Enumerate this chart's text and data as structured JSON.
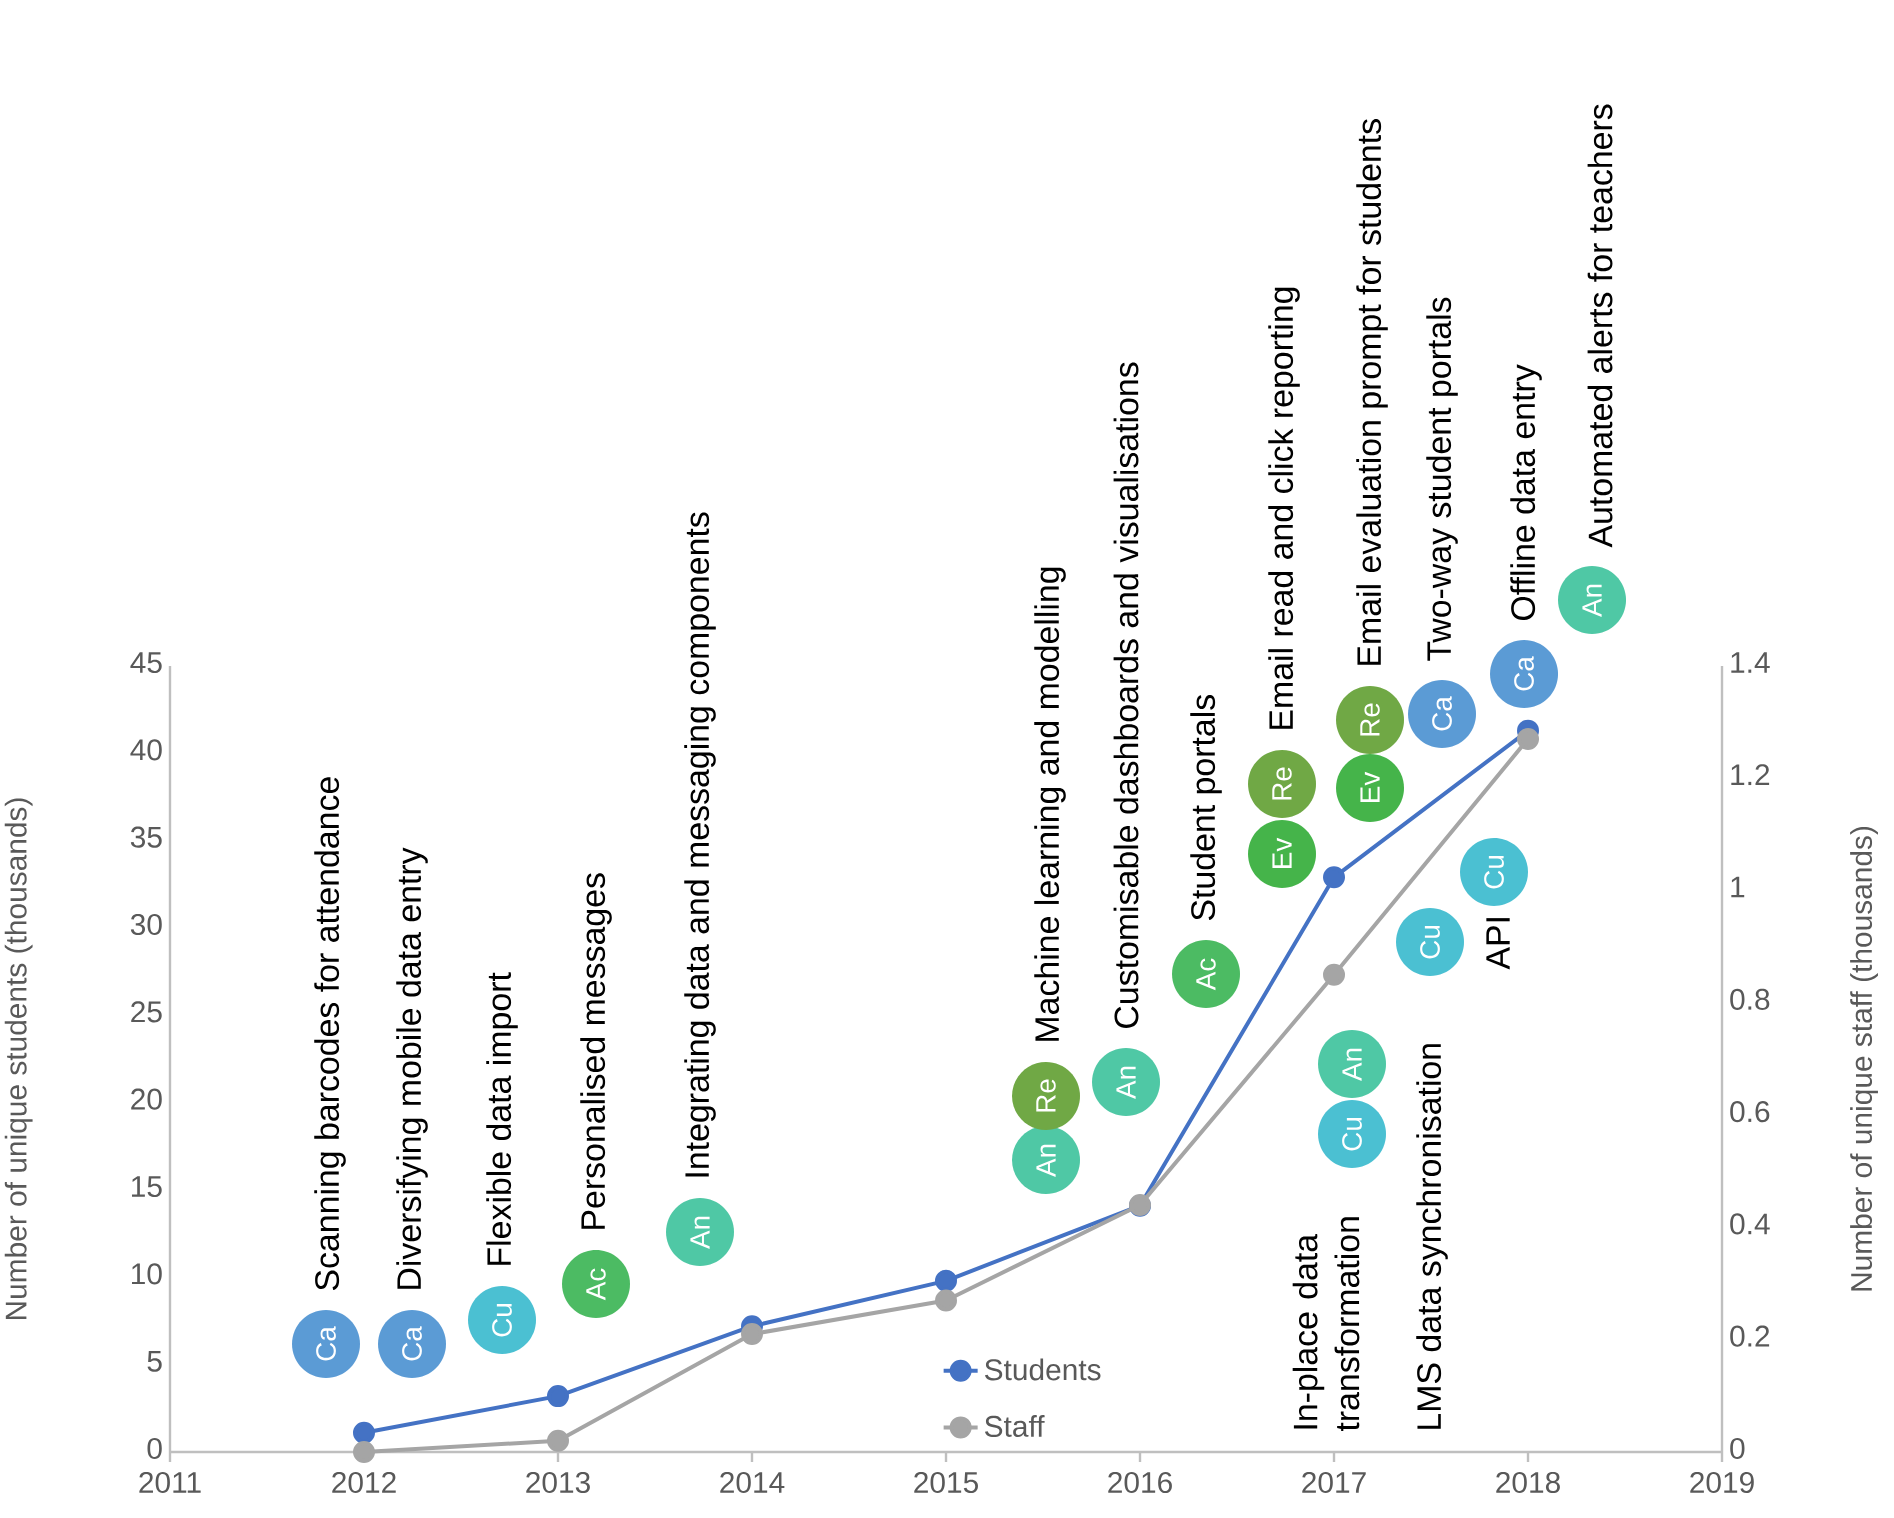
{
  "chart_data": {
    "type": "line",
    "ylabel": "Number of unique students (thousands)",
    "y2label": "Number of unique staff (thousands)",
    "x": [
      2012,
      2013,
      2014,
      2015,
      2016,
      2017,
      2018
    ],
    "xlim": [
      2011,
      2019
    ],
    "xticks": [
      2011,
      2012,
      2013,
      2014,
      2015,
      2016,
      2017,
      2018,
      2019
    ],
    "ylim": [
      0,
      45
    ],
    "yticks": [
      0,
      5,
      10,
      15,
      20,
      25,
      30,
      35,
      40,
      45
    ],
    "y2lim": [
      0,
      1.4
    ],
    "y2ticks": [
      {
        "value": 0,
        "label": "0"
      },
      {
        "value": 0.2,
        "label": "0.2"
      },
      {
        "value": 0.4,
        "label": "0.4"
      },
      {
        "value": 0.6,
        "label": "0.6"
      },
      {
        "value": 0.8,
        "label": "0.8"
      },
      {
        "value": 1,
        "label": "1"
      },
      {
        "value": 1.2,
        "label": "1.2"
      },
      {
        "value": 1.4,
        "label": "1.4"
      }
    ],
    "marker": "circle",
    "legend": "bottom",
    "series": [
      {
        "name": "Students",
        "color": "#4472c4",
        "values": [
          1.1,
          3.2,
          7.2,
          9.8,
          14.1,
          32.9,
          41.3
        ]
      },
      {
        "name": "Staff",
        "color": "#a5a5a5",
        "axis": "y2",
        "values": [
          0,
          0.02,
          0.21,
          0.27,
          0.44,
          0.85,
          1.27
        ]
      }
    ],
    "annotations": [
      "Ca",
      "Scanning barcodes for attendance",
      "Ca",
      "Diversifying mobile data entry",
      "Cu",
      "Flexible data import",
      "Ac",
      "Personalised messages",
      "An",
      "Integrating data and messaging components",
      "An",
      "Re",
      "Machine learning and modelling",
      "An",
      "Customisable dashboards and visualisations",
      "Ac",
      "Student portals",
      "Ev",
      "Re",
      "Email read and click reporting",
      "In-place data transformation",
      "Cu",
      "An",
      "Ev",
      "Re",
      "Email evaluation prompt for students",
      "LMS data synchronisation",
      "Cu",
      "Ca",
      "Two-way student portals",
      "Cu",
      "API",
      "Ca",
      "Offline data entry",
      "An",
      "Automated alerts for teachers"
    ]
  }
}
